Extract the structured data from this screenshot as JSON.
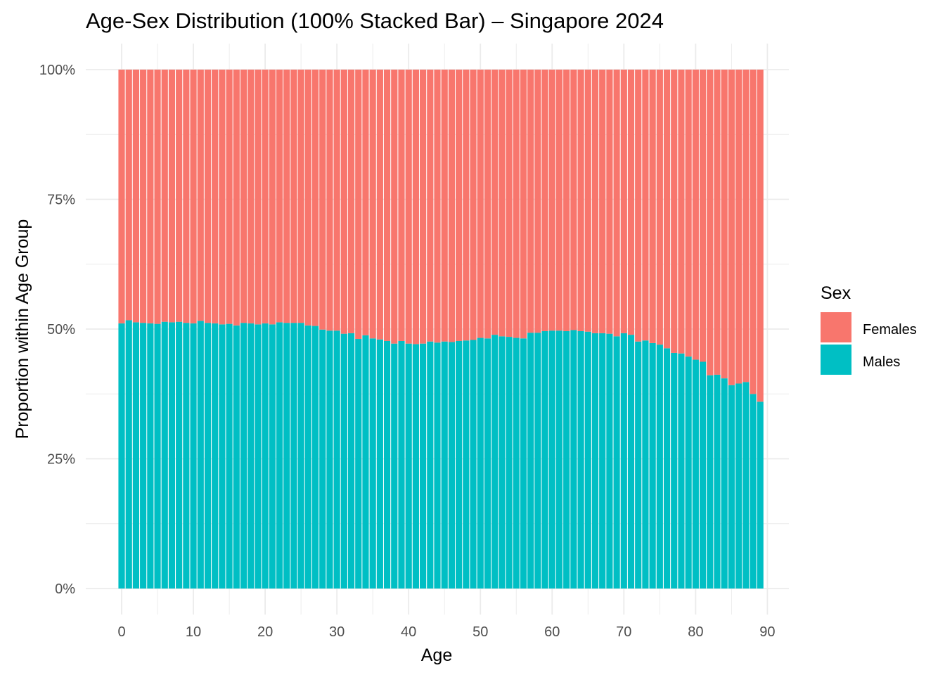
{
  "chart_data": {
    "type": "bar",
    "stacked": "percent",
    "title": "Age-Sex Distribution (100% Stacked Bar) – Singapore 2024",
    "xlabel": "Age",
    "ylabel": "Proportion within Age Group",
    "x_ticks": [
      "0",
      "10",
      "20",
      "30",
      "40",
      "50",
      "60",
      "70",
      "80",
      "90"
    ],
    "y_ticks": [
      "0%",
      "25%",
      "50%",
      "75%",
      "100%"
    ],
    "xlim": [
      -5,
      93
    ],
    "ylim": [
      0,
      1
    ],
    "grid": true,
    "legend": {
      "title": "Sex",
      "position": "right"
    },
    "colors": {
      "Females": "#F8766D",
      "Males": "#00BFC4"
    },
    "categories": [
      0,
      1,
      2,
      3,
      4,
      5,
      6,
      7,
      8,
      9,
      10,
      11,
      12,
      13,
      14,
      15,
      16,
      17,
      18,
      19,
      20,
      21,
      22,
      23,
      24,
      25,
      26,
      27,
      28,
      29,
      30,
      31,
      32,
      33,
      34,
      35,
      36,
      37,
      38,
      39,
      40,
      41,
      42,
      43,
      44,
      45,
      46,
      47,
      48,
      49,
      50,
      51,
      52,
      53,
      54,
      55,
      56,
      57,
      58,
      59,
      60,
      61,
      62,
      63,
      64,
      65,
      66,
      67,
      68,
      69,
      70,
      71,
      72,
      73,
      74,
      75,
      76,
      77,
      78,
      79,
      80,
      81,
      82,
      83,
      84,
      85,
      86,
      87,
      88,
      89
    ],
    "series": [
      {
        "name": "Males",
        "values": [
          0.511,
          0.517,
          0.513,
          0.512,
          0.511,
          0.51,
          0.514,
          0.513,
          0.514,
          0.512,
          0.511,
          0.516,
          0.512,
          0.511,
          0.509,
          0.51,
          0.507,
          0.512,
          0.511,
          0.509,
          0.511,
          0.509,
          0.513,
          0.512,
          0.512,
          0.512,
          0.507,
          0.506,
          0.499,
          0.497,
          0.497,
          0.491,
          0.492,
          0.481,
          0.488,
          0.482,
          0.48,
          0.477,
          0.472,
          0.477,
          0.472,
          0.471,
          0.472,
          0.476,
          0.474,
          0.476,
          0.475,
          0.477,
          0.478,
          0.479,
          0.483,
          0.482,
          0.489,
          0.486,
          0.485,
          0.483,
          0.482,
          0.493,
          0.493,
          0.496,
          0.497,
          0.497,
          0.496,
          0.498,
          0.496,
          0.495,
          0.492,
          0.492,
          0.491,
          0.486,
          0.492,
          0.489,
          0.476,
          0.478,
          0.473,
          0.47,
          0.463,
          0.454,
          0.453,
          0.447,
          0.441,
          0.437,
          0.411,
          0.412,
          0.405,
          0.392,
          0.395,
          0.398,
          0.375,
          0.36
        ]
      },
      {
        "name": "Females",
        "values": [
          0.489,
          0.483,
          0.487,
          0.488,
          0.489,
          0.49,
          0.486,
          0.487,
          0.486,
          0.488,
          0.489,
          0.484,
          0.488,
          0.489,
          0.491,
          0.49,
          0.493,
          0.488,
          0.489,
          0.491,
          0.489,
          0.491,
          0.487,
          0.488,
          0.488,
          0.488,
          0.493,
          0.494,
          0.501,
          0.503,
          0.503,
          0.509,
          0.508,
          0.519,
          0.512,
          0.518,
          0.52,
          0.523,
          0.528,
          0.523,
          0.528,
          0.529,
          0.528,
          0.524,
          0.526,
          0.524,
          0.525,
          0.523,
          0.522,
          0.521,
          0.517,
          0.518,
          0.511,
          0.514,
          0.515,
          0.517,
          0.518,
          0.507,
          0.507,
          0.504,
          0.503,
          0.503,
          0.504,
          0.502,
          0.504,
          0.505,
          0.508,
          0.508,
          0.509,
          0.514,
          0.508,
          0.511,
          0.524,
          0.522,
          0.527,
          0.53,
          0.537,
          0.546,
          0.547,
          0.553,
          0.559,
          0.563,
          0.589,
          0.588,
          0.595,
          0.608,
          0.605,
          0.602,
          0.625,
          0.64
        ]
      }
    ]
  }
}
